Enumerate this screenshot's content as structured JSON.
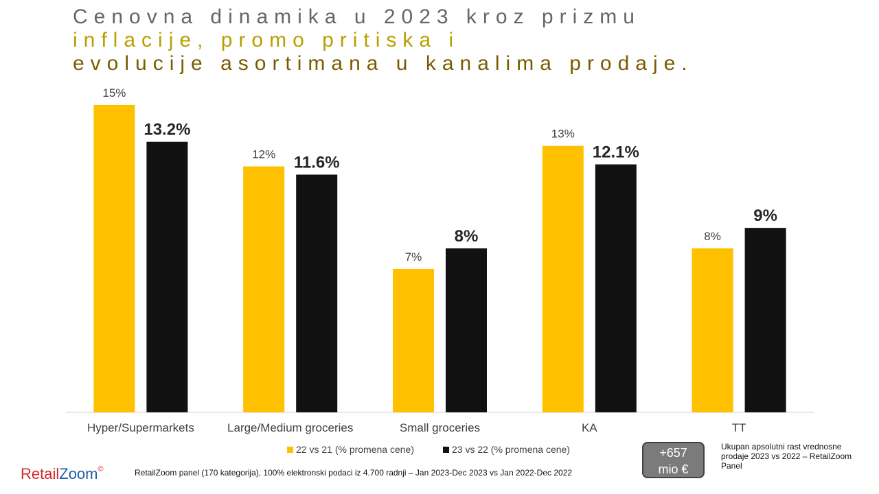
{
  "title": {
    "line1": "Cenovna dinamika u 2023 kroz prizmu",
    "line2": "inflacije, promo pritiska i",
    "line3": "evolucije asortimana u kanalima prodaje."
  },
  "chart_data": {
    "type": "bar",
    "categories": [
      "Hyper/Supermarkets",
      "Large/Medium groceries",
      "Small groceries",
      "KA",
      "TT"
    ],
    "series": [
      {
        "name": "22 vs 21 (% promena cene)",
        "color": "#ffc000",
        "values": [
          15,
          12,
          7,
          13,
          8
        ],
        "labels": [
          "15%",
          "12%",
          "7%",
          "13%",
          "8%"
        ]
      },
      {
        "name": "23 vs 22 (% promena cene)",
        "color": "#111111",
        "values": [
          13.2,
          11.6,
          8,
          12.1,
          9
        ],
        "labels": [
          "13.2%",
          "11.6%",
          "8%",
          "12.1%",
          "9%"
        ]
      }
    ],
    "ylim": [
      0,
      15.5
    ],
    "grid": false,
    "legend_position": "bottom"
  },
  "logo": {
    "retail": "Retail",
    "zoom": "Zoom",
    "copyright": "©"
  },
  "source": "RetailZoom panel (170 kategorija), 100% elektronski podaci iz 4.700 radnji – Jan 2023-Dec 2023 vs Jan 2022-Dec 2022",
  "total": {
    "line1": "+657",
    "line2": "mio €",
    "note": "Ukupan apsolutni rast vrednosne prodaje 2023 vs 2022 – RetailZoom Panel"
  }
}
